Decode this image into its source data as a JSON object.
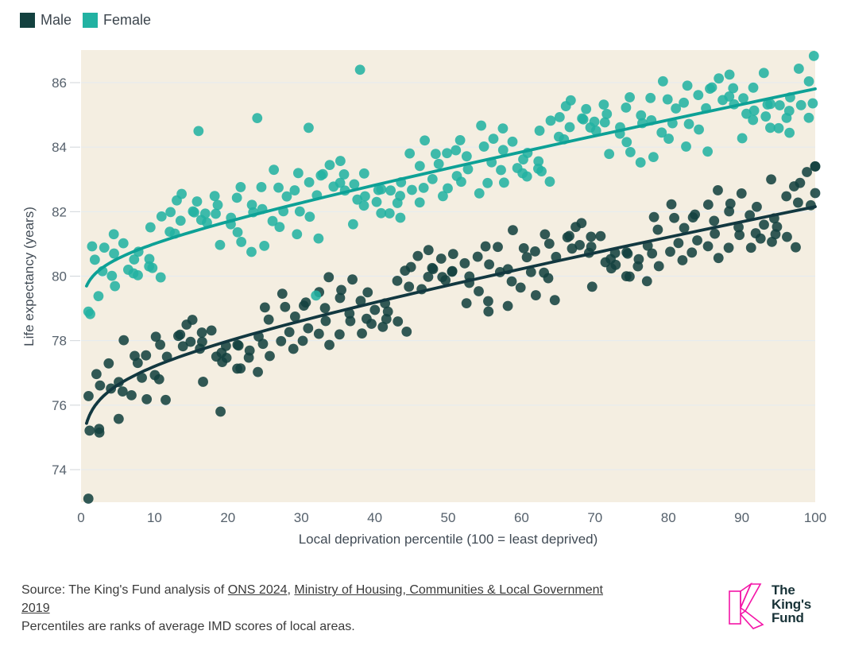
{
  "page": {
    "background": "#ffffff"
  },
  "legend": {
    "position": "top-left",
    "items": [
      {
        "label": "Male",
        "color": "#13413f"
      },
      {
        "label": "Female",
        "color": "#22b2a2"
      }
    ]
  },
  "chart_data": {
    "type": "scatter",
    "title": "",
    "xlabel": "Local deprivation percentile (100 = least deprived)",
    "ylabel": "Life expectancy (years)",
    "xlim": [
      0,
      100
    ],
    "ylim": [
      72.99,
      87.01
    ],
    "xticks": [
      0,
      10,
      20,
      30,
      40,
      50,
      60,
      70,
      80,
      90,
      100
    ],
    "yticks": [
      74,
      76,
      78,
      80,
      82,
      84,
      86
    ],
    "grid": "horizontal-only",
    "legend_position": "top-left",
    "plot_background": "#f4eee1",
    "grid_color": "#e4ebf1",
    "tick_mark_color": "#d0d5da",
    "tick_label_color": "#56616c",
    "axis_title_color": "#414b55",
    "dot_radius_px": 6.4,
    "dot_opacity": 0.87,
    "points_per_percentile": 2,
    "x_jitter": 0.45,
    "jitter_table": [
      0.12,
      -0.45,
      0.68,
      -0.23,
      0.95,
      -0.81,
      0.34,
      -0.62,
      0.05,
      0.51,
      -1.05,
      0.77,
      -0.34,
      0.22,
      -0.58,
      1.12,
      -0.15,
      0.42,
      -0.92,
      0.61,
      -0.27,
      0.88,
      -0.49,
      0.16,
      -1.22,
      0.37,
      0.72,
      -0.66,
      0.28,
      -0.08,
      1.02,
      -0.39,
      0.55,
      -0.75,
      0.19,
      -1.12,
      0.47,
      0.83,
      -0.29,
      0.09,
      -0.52,
      1.25,
      -0.18,
      0.64,
      -0.98,
      0.31,
      -0.71,
      0.44,
      -0.12,
      0.92,
      -0.41,
      0.58,
      -0.85
    ],
    "series": [
      {
        "name": "Male",
        "dot_color": "#13413f",
        "trend_color": "#123840",
        "trend_formula": "y = 75.56 + 0.533*ln(x) + 0.0414*x  (x = percentile 1..100)",
        "trend_a": 75.56,
        "trend_b": 0.533,
        "trend_c": 0.0414,
        "trend_points": [
          [
            1,
            75.6
          ],
          [
            2,
            76.0
          ],
          [
            5,
            76.6
          ],
          [
            10,
            77.2
          ],
          [
            20,
            78.0
          ],
          [
            30,
            78.6
          ],
          [
            40,
            79.2
          ],
          [
            50,
            79.7
          ],
          [
            60,
            80.2
          ],
          [
            70,
            80.7
          ],
          [
            80,
            81.2
          ],
          [
            90,
            81.7
          ],
          [
            100,
            82.2
          ]
        ],
        "scatter_spread_years": 1.0,
        "outliers": [
          [
            1,
            73.1
          ],
          [
            19,
            75.8
          ],
          [
            94,
            83.0
          ],
          [
            100,
            83.4
          ]
        ]
      },
      {
        "name": "Female",
        "dot_color": "#22b2a2",
        "trend_color": "#0da196",
        "trend_formula": "y = 79.76 + 0.347*ln(x) + 0.0445*x  (x = percentile 1..100)",
        "trend_a": 79.76,
        "trend_b": 0.347,
        "trend_c": 0.0445,
        "trend_points": [
          [
            1,
            79.8
          ],
          [
            2,
            80.1
          ],
          [
            5,
            80.5
          ],
          [
            10,
            81.0
          ],
          [
            20,
            81.7
          ],
          [
            30,
            82.3
          ],
          [
            40,
            82.8
          ],
          [
            50,
            83.3
          ],
          [
            60,
            83.9
          ],
          [
            70,
            84.3
          ],
          [
            80,
            84.8
          ],
          [
            90,
            85.3
          ],
          [
            100,
            85.8
          ]
        ],
        "scatter_spread_years": 1.0,
        "outliers": [
          [
            1,
            78.9
          ],
          [
            16,
            84.5
          ],
          [
            24,
            84.9
          ],
          [
            31,
            84.6
          ],
          [
            32,
            79.4
          ],
          [
            38,
            86.4
          ],
          [
            93,
            86.3
          ]
        ]
      }
    ]
  },
  "footer": {
    "source_prefix": "Source: The King's Fund analysis of ",
    "link1": "ONS 2024",
    "separator": ", ",
    "link2_part1": "Ministry of Housing, Communities & Local Government",
    "link2_part2": "2019",
    "note": "Percentiles are ranks of average IMD scores of local areas."
  },
  "logo": {
    "lines": [
      "The",
      "King's",
      "Fund"
    ],
    "text_color": "#173237",
    "mark_color": "#f414a7"
  }
}
